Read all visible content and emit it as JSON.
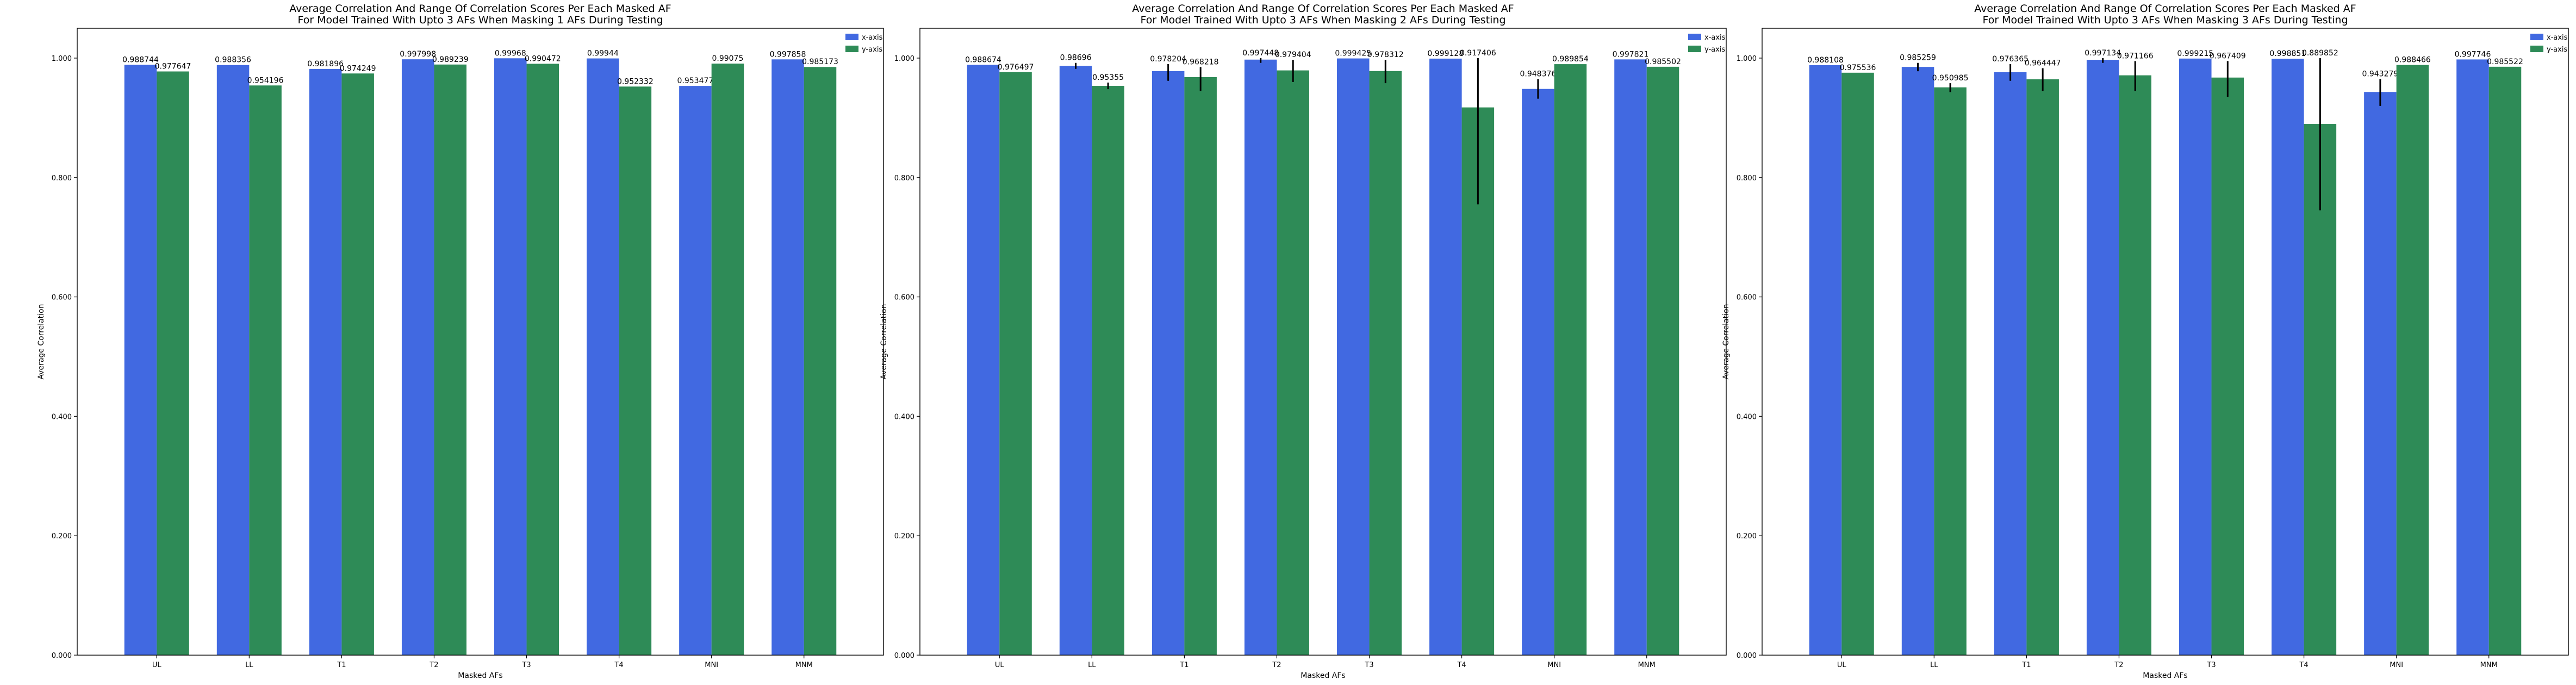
{
  "colors": {
    "x_axis": "#4169e1",
    "y_axis": "#2e8b57",
    "error_bar": "#000000",
    "frame": "#000000",
    "background": "#ffffff"
  },
  "chart_data": [
    {
      "type": "bar",
      "title": "Average Correlation And Range Of Correlation Scores Per Each Masked AF\nFor Model Trained With Upto 3 AFs When Masking 1 AFs During Testing",
      "xlabel": "Masked AFs",
      "ylabel": "Average Correlation",
      "ylim": [
        0,
        1.05
      ],
      "yticks": [
        "0.000",
        "0.200",
        "0.400",
        "0.600",
        "0.800",
        "1.000"
      ],
      "categories": [
        "UL",
        "LL",
        "T1",
        "T2",
        "T3",
        "T4",
        "MNI",
        "MNM"
      ],
      "legend": "top-right",
      "series": [
        {
          "name": "x-axis",
          "values": [
            0.988744,
            0.988356,
            0.981896,
            0.997998,
            0.99968,
            0.99944,
            0.953477,
            0.997858
          ],
          "labels": [
            "0.988744",
            "0.988356",
            "0.981896",
            "0.997998",
            "0.99968",
            "0.99944",
            "0.953477",
            "0.997858"
          ],
          "err": [
            null,
            null,
            null,
            null,
            null,
            null,
            null,
            null
          ]
        },
        {
          "name": "y-axis",
          "values": [
            0.977647,
            0.954196,
            0.974249,
            0.989239,
            0.990472,
            0.952332,
            0.99075,
            0.985173
          ],
          "labels": [
            "0.977647",
            "0.954196",
            "0.974249",
            "0.989239",
            "0.990472",
            "0.952332",
            "0.99075",
            "0.985173"
          ],
          "err": [
            null,
            null,
            null,
            null,
            null,
            null,
            null,
            null
          ]
        }
      ]
    },
    {
      "type": "bar",
      "title": "Average Correlation And Range Of Correlation Scores Per Each Masked AF\nFor Model Trained With Upto 3 AFs When Masking 2 AFs During Testing",
      "xlabel": "Masked AFs",
      "ylabel": "Average Correlation",
      "ylim": [
        0,
        1.05
      ],
      "yticks": [
        "0.000",
        "0.200",
        "0.400",
        "0.600",
        "0.800",
        "1.000"
      ],
      "categories": [
        "UL",
        "LL",
        "T1",
        "T2",
        "T3",
        "T4",
        "MNI",
        "MNM"
      ],
      "legend": "top-right",
      "series": [
        {
          "name": "x-axis",
          "values": [
            0.988674,
            0.98696,
            0.978204,
            0.997448,
            0.999425,
            0.999128,
            0.948376,
            0.997821
          ],
          "labels": [
            "0.988674",
            "0.98696",
            "0.978204",
            "0.997448",
            "0.999425",
            "0.999128",
            "0.948376",
            "0.997821"
          ],
          "err": [
            null,
            [
              0.982,
              0.992
            ],
            [
              0.962,
              0.99
            ],
            [
              0.992,
              1.0
            ],
            null,
            null,
            [
              0.932,
              0.965
            ],
            null
          ]
        },
        {
          "name": "y-axis",
          "values": [
            0.976497,
            0.95355,
            0.968218,
            0.979404,
            0.978312,
            0.917406,
            0.989854,
            0.985502
          ],
          "labels": [
            "0.976497",
            "0.95355",
            "0.968218",
            "0.979404",
            "0.978312",
            "0.917406",
            "0.989854",
            "0.985502"
          ],
          "err": [
            null,
            [
              0.948,
              0.959
            ],
            [
              0.945,
              0.985
            ],
            [
              0.96,
              0.997
            ],
            [
              0.958,
              0.997
            ],
            [
              0.755,
              1.0
            ],
            null,
            null
          ]
        }
      ]
    },
    {
      "type": "bar",
      "title": "Average Correlation And Range Of Correlation Scores Per Each Masked AF\nFor Model Trained With Upto 3 AFs When Masking 3 AFs During Testing",
      "xlabel": "Masked AFs",
      "ylabel": "Average Correlation",
      "ylim": [
        0,
        1.05
      ],
      "yticks": [
        "0.000",
        "0.200",
        "0.400",
        "0.600",
        "0.800",
        "1.000"
      ],
      "categories": [
        "UL",
        "LL",
        "T1",
        "T2",
        "T3",
        "T4",
        "MNI",
        "MNM"
      ],
      "legend": "top-right",
      "series": [
        {
          "name": "x-axis",
          "values": [
            0.988108,
            0.985259,
            0.976365,
            0.997134,
            0.999215,
            0.998851,
            0.943279,
            0.997746
          ],
          "labels": [
            "0.988108",
            "0.985259",
            "0.976365",
            "0.997134",
            "0.999215",
            "0.998851",
            "0.943279",
            "0.997746"
          ],
          "err": [
            null,
            [
              0.978,
              0.992
            ],
            [
              0.962,
              0.99
            ],
            [
              0.992,
              1.0
            ],
            null,
            null,
            [
              0.92,
              0.965
            ],
            null
          ]
        },
        {
          "name": "y-axis",
          "values": [
            0.975536,
            0.950985,
            0.964447,
            0.971166,
            0.967409,
            0.889852,
            0.988466,
            0.985522
          ],
          "labels": [
            "0.975536",
            "0.950985",
            "0.964447",
            "0.971166",
            "0.967409",
            "0.889852",
            "0.988466",
            "0.985522"
          ],
          "err": [
            null,
            [
              0.943,
              0.958
            ],
            [
              0.945,
              0.983
            ],
            [
              0.945,
              0.995
            ],
            [
              0.935,
              0.995
            ],
            [
              0.745,
              1.0
            ],
            null,
            null
          ]
        }
      ]
    }
  ]
}
